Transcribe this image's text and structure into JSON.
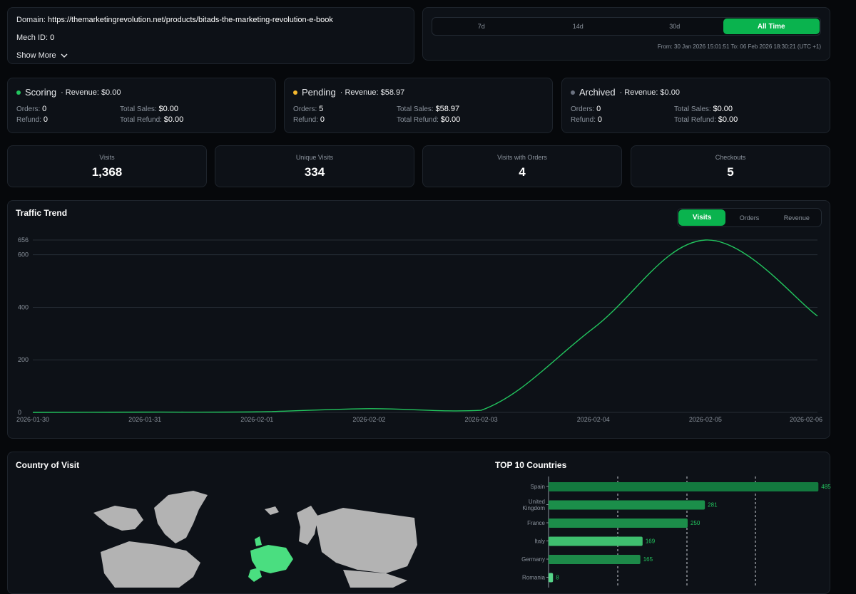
{
  "domain": {
    "label": "Domain:",
    "value": "https://themarketingrevolution.net/products/bitads-the-marketing-revolution-e-book",
    "mech_label": "Mech ID:",
    "mech_value": "0",
    "show_more": "Show More"
  },
  "range": {
    "options": [
      "7d",
      "14d",
      "30d",
      "All Time"
    ],
    "active": "All Time",
    "text": "From: 30 Jan 2026 15:01:51 To: 06 Feb 2026 18:30:21 (UTC +1)"
  },
  "status": [
    {
      "name": "Scoring",
      "revenue": "· Revenue: $0.00",
      "color": "#22c55e",
      "orders_label": "Orders:",
      "orders": "0",
      "refund_label": "Refund:",
      "refund": "0",
      "sales_label": "Total Sales:",
      "sales": "$0.00",
      "trefund_label": "Total Refund:",
      "trefund": "$0.00"
    },
    {
      "name": "Pending",
      "revenue": "· Revenue: $58.97",
      "color": "#f5b82e",
      "orders_label": "Orders:",
      "orders": "5",
      "refund_label": "Refund:",
      "refund": "0",
      "sales_label": "Total Sales:",
      "sales": "$58.97",
      "trefund_label": "Total Refund:",
      "trefund": "$0.00"
    },
    {
      "name": "Archived",
      "revenue": "· Revenue: $0.00",
      "color": "#6b7280",
      "orders_label": "Orders:",
      "orders": "0",
      "refund_label": "Refund:",
      "refund": "0",
      "sales_label": "Total Sales:",
      "sales": "$0.00",
      "trefund_label": "Total Refund:",
      "trefund": "$0.00"
    }
  ],
  "stats": [
    {
      "label": "Visits",
      "value": "1,368"
    },
    {
      "label": "Unique Visits",
      "value": "334"
    },
    {
      "label": "Visits with Orders",
      "value": "4"
    },
    {
      "label": "Checkouts",
      "value": "5"
    }
  ],
  "traffic": {
    "title": "Traffic Trend",
    "tabs": [
      "Visits",
      "Orders",
      "Revenue"
    ],
    "active_tab": "Visits",
    "line_color": "#22c55e"
  },
  "country": {
    "title": "Country of Visit",
    "top_title": "TOP 10 Countries",
    "map_land_color": "#b3b3b3",
    "map_highlight_color": "#4ade80"
  },
  "chart_data": [
    {
      "type": "line",
      "title": "Traffic Trend",
      "series": [
        {
          "name": "Visits",
          "values": [
            0,
            1,
            2,
            14,
            8,
            320,
            656,
            367
          ]
        }
      ],
      "x": [
        "2026-01-30",
        "2026-01-31",
        "2026-02-01",
        "2026-02-02",
        "2026-02-03",
        "2026-02-04",
        "2026-02-05",
        "2026-02-06"
      ],
      "yticks": [
        "0",
        "200",
        "400",
        "600",
        "656"
      ],
      "ylim": [
        0,
        656
      ],
      "grid": true
    },
    {
      "type": "bar",
      "orientation": "horizontal",
      "title": "TOP 10 Countries",
      "categories": [
        [
          "Spain"
        ],
        [
          "United",
          "Kingdom"
        ],
        [
          "France"
        ],
        [
          "Italy"
        ],
        [
          "Germany"
        ],
        [
          "Romania"
        ]
      ],
      "values": [
        485,
        281,
        250,
        169,
        165,
        8
      ],
      "value_labels": [
        "485",
        "281",
        "250",
        "169",
        "165",
        "8"
      ],
      "colors": [
        "#137a3f",
        "#1b8f4a",
        "#1c8d4a",
        "#3fbf6f",
        "#1d8a49",
        "#57d68a"
      ],
      "xlim": [
        0,
        500
      ]
    }
  ]
}
